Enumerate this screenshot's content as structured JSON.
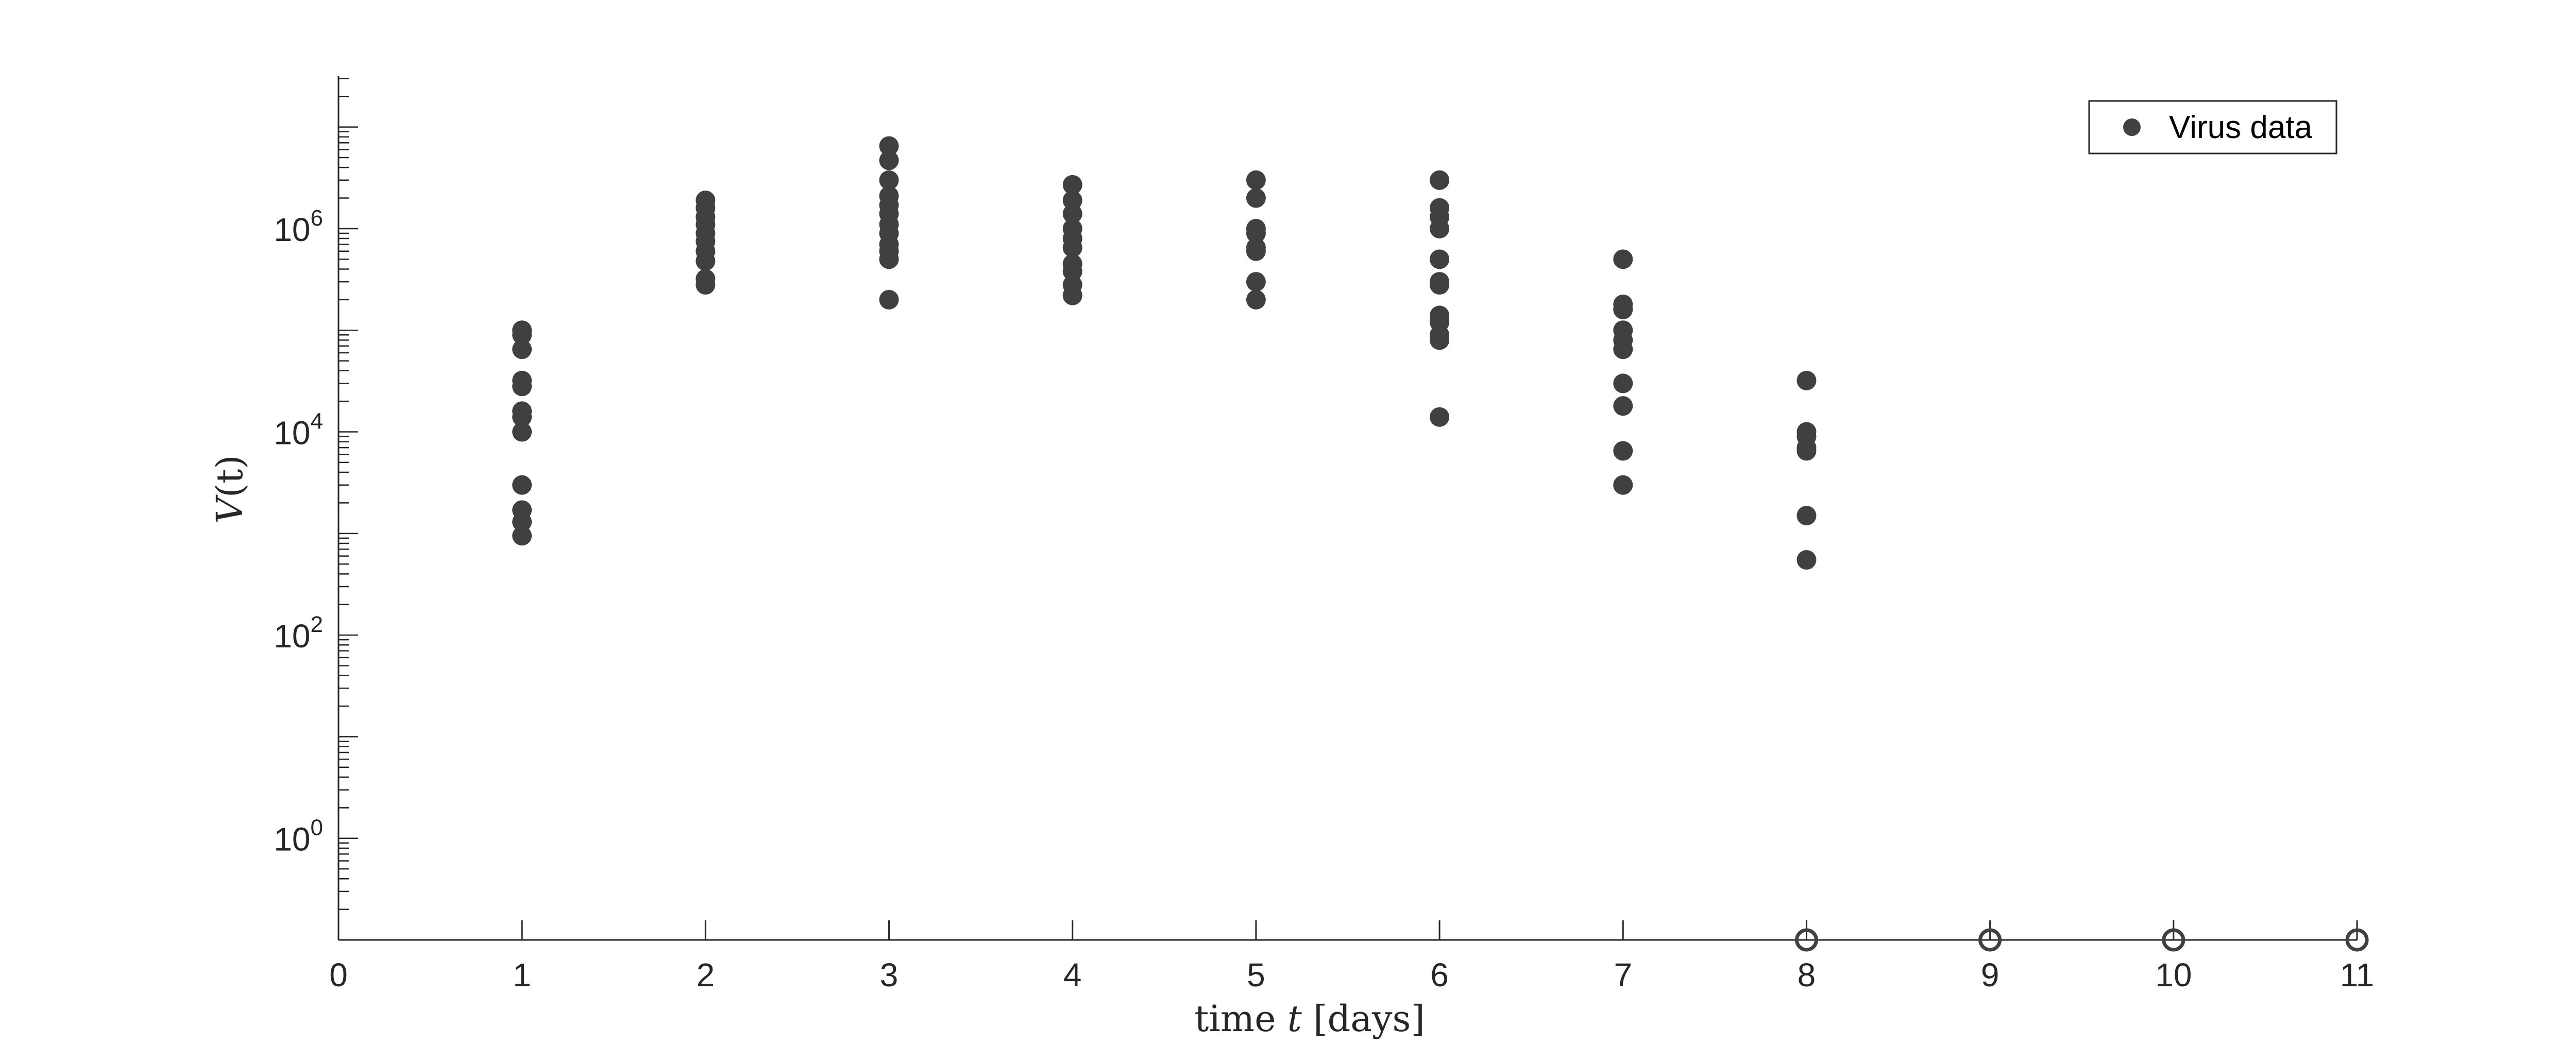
{
  "chart_data": {
    "type": "scatter",
    "title": "",
    "xlabel": {
      "prefix": "time ",
      "var": "t",
      "suffix": " [days]"
    },
    "ylabel": {
      "var": "V",
      "paren": "(t)"
    },
    "xlim": [
      0,
      11
    ],
    "ylim_log10": [
      -1,
      7.5
    ],
    "y_scale": "log",
    "grid": false,
    "legend_position": "top-right",
    "x_ticks": [
      "0",
      "1",
      "2",
      "3",
      "4",
      "5",
      "6",
      "7",
      "8",
      "9",
      "10",
      "11"
    ],
    "y_ticks": [
      {
        "base": "10",
        "exp": "0",
        "value": 1
      },
      {
        "base": "10",
        "exp": "2",
        "value": 100
      },
      {
        "base": "10",
        "exp": "4",
        "value": 10000
      },
      {
        "base": "10",
        "exp": "6",
        "value": 1000000
      }
    ],
    "colors": {
      "marker": "#404040",
      "axis": "#262626"
    },
    "series": [
      {
        "name": "Virus data",
        "marker": "filled-circle",
        "points": [
          [
            1,
            100000
          ],
          [
            1,
            90000
          ],
          [
            1,
            65000
          ],
          [
            1,
            32000
          ],
          [
            1,
            28000
          ],
          [
            1,
            16000
          ],
          [
            1,
            14000
          ],
          [
            1,
            10000
          ],
          [
            1,
            3000
          ],
          [
            1,
            1700
          ],
          [
            1,
            1300
          ],
          [
            1,
            950
          ],
          [
            2,
            1900000
          ],
          [
            2,
            1600000
          ],
          [
            2,
            1300000
          ],
          [
            2,
            1100000
          ],
          [
            2,
            900000
          ],
          [
            2,
            750000
          ],
          [
            2,
            600000
          ],
          [
            2,
            480000
          ],
          [
            2,
            320000
          ],
          [
            2,
            280000
          ],
          [
            3,
            6500000
          ],
          [
            3,
            4700000
          ],
          [
            3,
            3000000
          ],
          [
            3,
            2100000
          ],
          [
            3,
            1700000
          ],
          [
            3,
            1400000
          ],
          [
            3,
            1100000
          ],
          [
            3,
            900000
          ],
          [
            3,
            700000
          ],
          [
            3,
            600000
          ],
          [
            3,
            500000
          ],
          [
            3,
            200000
          ],
          [
            4,
            2700000
          ],
          [
            4,
            1900000
          ],
          [
            4,
            1400000
          ],
          [
            4,
            1000000
          ],
          [
            4,
            800000
          ],
          [
            4,
            650000
          ],
          [
            4,
            450000
          ],
          [
            4,
            380000
          ],
          [
            4,
            280000
          ],
          [
            4,
            220000
          ],
          [
            5,
            3000000
          ],
          [
            5,
            2000000
          ],
          [
            5,
            1000000
          ],
          [
            5,
            900000
          ],
          [
            5,
            650000
          ],
          [
            5,
            600000
          ],
          [
            5,
            300000
          ],
          [
            5,
            200000
          ],
          [
            6,
            3000000
          ],
          [
            6,
            1600000
          ],
          [
            6,
            1300000
          ],
          [
            6,
            1000000
          ],
          [
            6,
            500000
          ],
          [
            6,
            300000
          ],
          [
            6,
            280000
          ],
          [
            6,
            140000
          ],
          [
            6,
            120000
          ],
          [
            6,
            90000
          ],
          [
            6,
            80000
          ],
          [
            6,
            14000
          ],
          [
            7,
            500000
          ],
          [
            7,
            180000
          ],
          [
            7,
            160000
          ],
          [
            7,
            100000
          ],
          [
            7,
            80000
          ],
          [
            7,
            65000
          ],
          [
            7,
            30000
          ],
          [
            7,
            18000
          ],
          [
            7,
            6500
          ],
          [
            7,
            3000
          ],
          [
            8,
            32000
          ],
          [
            8,
            10000
          ],
          [
            8,
            9000
          ],
          [
            8,
            7000
          ],
          [
            8,
            6500
          ],
          [
            8,
            1500
          ],
          [
            8,
            550
          ]
        ]
      },
      {
        "marker": "open-circle",
        "on_axis_floor": true,
        "points": [
          [
            8,
            0.1
          ],
          [
            9,
            0.1
          ],
          [
            10,
            0.1
          ],
          [
            11,
            0.1
          ]
        ]
      }
    ]
  }
}
